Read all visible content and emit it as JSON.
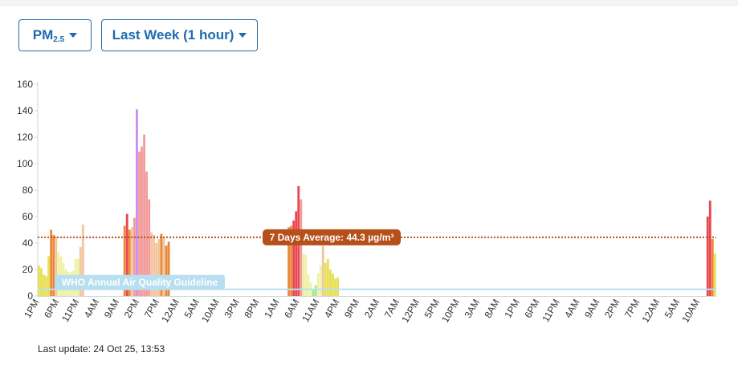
{
  "controls": {
    "pollutant": {
      "label": "PM",
      "subscript": "2.5"
    },
    "range": {
      "label": "Last Week (1 hour)"
    }
  },
  "last_update": "Last update: 24 Oct 25, 13:53",
  "colors": {
    "good": "#e8e055",
    "moderate": "#eef2a6",
    "lightgreen": "#9fe79b",
    "light_orange": "#f3c59c",
    "orange": "#e9873a",
    "pink": "#f39b9b",
    "red": "#e8474f",
    "purple": "#c98ee8",
    "average_line": "#b5501a",
    "who_line": "#b8dff0",
    "accent": "#1f6bb0"
  },
  "chart_data": {
    "type": "bar",
    "ylim": [
      0,
      160
    ],
    "yticks": [
      0,
      20,
      40,
      60,
      80,
      100,
      120,
      140,
      160
    ],
    "x_tick_labels": [
      "1PM",
      "6PM",
      "11PM",
      "4AM",
      "9AM",
      "2PM",
      "7PM",
      "12AM",
      "5AM",
      "10AM",
      "3PM",
      "8PM",
      "1AM",
      "6AM",
      "11AM",
      "4PM",
      "9PM",
      "2AM",
      "7AM",
      "12PM",
      "5PM",
      "10PM",
      "3AM",
      "8AM",
      "1PM",
      "6PM",
      "11PM",
      "4AM",
      "9AM",
      "2PM",
      "7PM",
      "12AM",
      "5AM",
      "10AM"
    ],
    "average": {
      "value": 44.3,
      "label": "7 Days Average: 44.3 µg/m³"
    },
    "guideline": {
      "value": 5,
      "label": "WHO Annual Air Quality Guideline"
    },
    "bars": [
      {
        "v": 23,
        "c": "good"
      },
      {
        "v": 21,
        "c": "good"
      },
      {
        "v": 16,
        "c": "good"
      },
      {
        "v": 15,
        "c": "good"
      },
      {
        "v": 30,
        "c": "good"
      },
      {
        "v": 50,
        "c": "orange"
      },
      {
        "v": 46,
        "c": "orange"
      },
      {
        "v": 45,
        "c": "light_orange"
      },
      {
        "v": 33,
        "c": "moderate"
      },
      {
        "v": 30,
        "c": "moderate"
      },
      {
        "v": 25,
        "c": "moderate"
      },
      {
        "v": 20,
        "c": "moderate"
      },
      {
        "v": 18,
        "c": "moderate"
      },
      {
        "v": 18,
        "c": "moderate"
      },
      {
        "v": 19,
        "c": "moderate"
      },
      {
        "v": 28,
        "c": "moderate"
      },
      {
        "v": 28,
        "c": "moderate"
      },
      {
        "v": 37,
        "c": "light_orange"
      },
      {
        "v": 54,
        "c": "light_orange"
      },
      null,
      null,
      null,
      null,
      null,
      null,
      null,
      null,
      null,
      null,
      null,
      null,
      null,
      null,
      null,
      null,
      {
        "v": 53,
        "c": "orange"
      },
      {
        "v": 62,
        "c": "red"
      },
      {
        "v": 50,
        "c": "orange"
      },
      {
        "v": 52,
        "c": "light_orange"
      },
      {
        "v": 59,
        "c": "pink"
      },
      {
        "v": 141,
        "c": "purple"
      },
      {
        "v": 109,
        "c": "pink"
      },
      {
        "v": 113,
        "c": "pink"
      },
      {
        "v": 122,
        "c": "pink"
      },
      {
        "v": 94,
        "c": "pink"
      },
      {
        "v": 73,
        "c": "pink"
      },
      {
        "v": 48,
        "c": "light_orange"
      },
      {
        "v": 46,
        "c": "light_orange"
      },
      {
        "v": 40,
        "c": "light_orange"
      },
      {
        "v": 43,
        "c": "light_orange"
      },
      {
        "v": 47,
        "c": "orange"
      },
      {
        "v": 44,
        "c": "light_orange"
      },
      {
        "v": 38,
        "c": "orange"
      },
      {
        "v": 41,
        "c": "orange"
      },
      null,
      null,
      null,
      null,
      null,
      null,
      null,
      null,
      null,
      null,
      null,
      null,
      null,
      null,
      null,
      null,
      null,
      null,
      null,
      null,
      null,
      null,
      null,
      null,
      null,
      null,
      null,
      null,
      null,
      null,
      null,
      null,
      null,
      null,
      null,
      null,
      null,
      null,
      null,
      null,
      null,
      null,
      null,
      null,
      null,
      null,
      null,
      null,
      {
        "v": 52,
        "c": "orange"
      },
      {
        "v": 53,
        "c": "orange"
      },
      {
        "v": 57,
        "c": "red"
      },
      {
        "v": 64,
        "c": "red"
      },
      {
        "v": 83,
        "c": "red"
      },
      {
        "v": 73,
        "c": "pink"
      },
      {
        "v": 32,
        "c": "moderate"
      },
      {
        "v": 31,
        "c": "moderate"
      },
      {
        "v": 16,
        "c": "moderate"
      },
      {
        "v": 10,
        "c": "moderate"
      },
      {
        "v": 5,
        "c": "lightgreen"
      },
      {
        "v": 8,
        "c": "lightgreen"
      },
      {
        "v": 17,
        "c": "moderate"
      },
      {
        "v": 23,
        "c": "moderate"
      },
      {
        "v": 38,
        "c": "light_orange"
      },
      {
        "v": 25,
        "c": "good"
      },
      {
        "v": 28,
        "c": "good"
      },
      {
        "v": 20,
        "c": "good"
      },
      {
        "v": 17,
        "c": "good"
      },
      {
        "v": 13,
        "c": "good"
      },
      {
        "v": 14,
        "c": "good"
      },
      null,
      null,
      null,
      null,
      null,
      null,
      null,
      null,
      null,
      null,
      null,
      null,
      null,
      null,
      null,
      null,
      null,
      null,
      null,
      null,
      null,
      null,
      null,
      null,
      null,
      null,
      null,
      null,
      null,
      null,
      null,
      null,
      null,
      null,
      null,
      null,
      null,
      null,
      null,
      null,
      null,
      null,
      null,
      null,
      null,
      null,
      null,
      null,
      null,
      null,
      null,
      null,
      null,
      null,
      null,
      null,
      null,
      null,
      null,
      null,
      null,
      null,
      null,
      null,
      null,
      null,
      null,
      null,
      null,
      null,
      null,
      null,
      null,
      null,
      null,
      null,
      null,
      null,
      null,
      null,
      null,
      null,
      null,
      null,
      null,
      null,
      null,
      null,
      null,
      null,
      null,
      null,
      null,
      null,
      null,
      null,
      null,
      null,
      null,
      null,
      null,
      null,
      null,
      null,
      null,
      null,
      null,
      null,
      null,
      null,
      null,
      null,
      null,
      null,
      null,
      null,
      null,
      null,
      null,
      null,
      null,
      null,
      null,
      null,
      null,
      null,
      null,
      null,
      null,
      null,
      null,
      null,
      null,
      null,
      null,
      null,
      null,
      null,
      null,
      null,
      null,
      null,
      null,
      null,
      null,
      null,
      null,
      null,
      null,
      null,
      {
        "v": 60,
        "c": "red"
      },
      {
        "v": 72,
        "c": "red"
      },
      {
        "v": 43,
        "c": "orange"
      },
      {
        "v": 32,
        "c": "good"
      }
    ]
  }
}
